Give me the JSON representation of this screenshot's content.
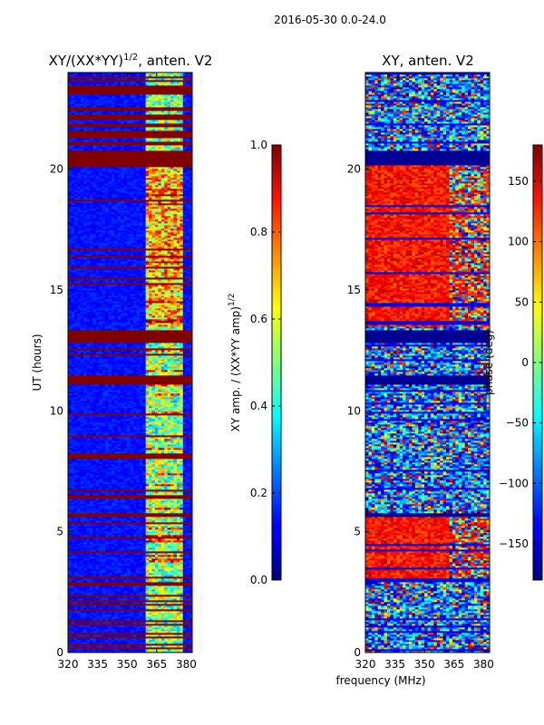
{
  "suptitle": "2016-05-30 0.0-24.0",
  "x_axis_label": "frequency (MHz)",
  "chart_data": [
    {
      "type": "heatmap",
      "title": "XY/(XX*YY)^{1/2}, anten. V2",
      "title_parts": {
        "base": "XY/(XX*YY)",
        "superscript": "1/2",
        "suffix": ", anten. V2"
      },
      "xlabel": "frequency (MHz)",
      "ylabel": "UT (hours)",
      "xlim": [
        320,
        383
      ],
      "ylim": [
        0,
        24
      ],
      "x_ticks": [
        320,
        335,
        350,
        365,
        380
      ],
      "y_ticks": [
        0,
        5,
        10,
        15,
        20
      ],
      "x_tick_labels": [
        "320",
        "335",
        "350",
        "365",
        "380"
      ],
      "y_tick_labels": [
        "0",
        "5",
        "10",
        "15",
        "20"
      ],
      "colorbar": {
        "label": "XY amp. / (XX*YY amp)^{1/2}",
        "label_parts": {
          "base": "XY amp. / (XX*YY amp)",
          "superscript": "1/2"
        },
        "range": [
          0.0,
          1.0
        ],
        "ticks": [
          0.0,
          0.2,
          0.4,
          0.6,
          0.8,
          1.0
        ],
        "tick_labels": [
          "0.0",
          "0.2",
          "0.4",
          "0.6",
          "0.8",
          "1.0"
        ],
        "colormap": "jet"
      },
      "flagged_bands_hours": [
        [
          20.2,
          20.8
        ],
        [
          12.8,
          13.35
        ],
        [
          11.1,
          11.5
        ],
        [
          5.6,
          5.8
        ],
        [
          6.4,
          6.55
        ]
      ],
      "bright_channel_range_mhz": [
        360,
        378
      ]
    },
    {
      "type": "heatmap",
      "title": "XY, anten. V2",
      "xlabel": "frequency (MHz)",
      "ylabel": "",
      "xlim": [
        320,
        383
      ],
      "ylim": [
        0,
        24
      ],
      "x_ticks": [
        320,
        335,
        350,
        365,
        380
      ],
      "y_ticks": [
        0,
        5,
        10,
        15,
        20
      ],
      "x_tick_labels": [
        "320",
        "335",
        "350",
        "365",
        "380"
      ],
      "y_tick_labels": [
        "0",
        "5",
        "10",
        "15",
        "20"
      ],
      "colorbar": {
        "label": "phase (deg)",
        "range": [
          -180,
          180
        ],
        "ticks": [
          -150,
          -100,
          -50,
          0,
          50,
          100,
          150
        ],
        "tick_labels": [
          "−150",
          "−100",
          "−50",
          "0",
          "50",
          "100",
          "150"
        ],
        "colormap": "jet"
      },
      "flagged_bands_hours": [
        [
          20.2,
          20.8
        ],
        [
          12.8,
          13.35
        ],
        [
          11.1,
          11.5
        ],
        [
          5.6,
          5.8
        ]
      ],
      "high_phase_time_ranges_hours": [
        [
          3.0,
          5.6
        ],
        [
          13.5,
          20.2
        ]
      ]
    }
  ]
}
